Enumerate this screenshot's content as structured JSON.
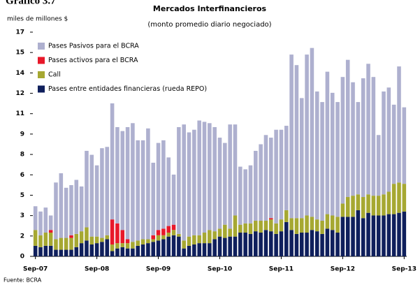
{
  "chart_data": {
    "type": "stacked_bar",
    "heading": "Gráfico 3.7",
    "title": "Mercados Interfinancieros",
    "subtitle": "(monto promedio diario negociado)",
    "y_label": "miles de millones $",
    "source": "Fuente: BCRA",
    "categories": [
      "Sep-07",
      null,
      null,
      null,
      null,
      null,
      null,
      null,
      null,
      null,
      null,
      null,
      "Sep-08",
      null,
      null,
      null,
      null,
      null,
      null,
      null,
      null,
      null,
      null,
      null,
      "Sep-09",
      null,
      null,
      null,
      null,
      null,
      null,
      null,
      null,
      null,
      null,
      null,
      "Sep-10",
      null,
      null,
      null,
      null,
      null,
      null,
      null,
      null,
      null,
      null,
      null,
      "Sep-11",
      null,
      null,
      null,
      null,
      null,
      null,
      null,
      null,
      null,
      null,
      null,
      "Sep-12",
      null,
      null,
      null,
      null,
      null,
      null,
      null,
      null,
      null,
      null,
      null,
      "Sep-13"
    ],
    "series": [
      {
        "name": "Pases entre entidades financieras (rueda REPO)",
        "color": "#0f1f5c",
        "values": [
          0.8,
          0.7,
          0.8,
          0.8,
          0.5,
          0.5,
          0.5,
          0.5,
          0.7,
          1.0,
          1.2,
          0.9,
          1.0,
          1.1,
          1.3,
          0.4,
          0.6,
          0.7,
          0.6,
          0.6,
          0.8,
          0.9,
          1.0,
          1.1,
          1.2,
          1.3,
          1.5,
          1.6,
          1.5,
          0.6,
          0.8,
          0.9,
          1.0,
          1.0,
          1.0,
          1.3,
          1.5,
          1.4,
          1.5,
          1.5,
          1.8,
          1.8,
          1.7,
          1.9,
          1.8,
          2.0,
          1.9,
          1.7,
          1.9,
          2.6,
          2.0,
          1.7,
          1.8,
          1.8,
          2.0,
          1.9,
          1.7,
          2.1,
          2.0,
          1.8,
          3.0,
          3.0,
          3.0,
          3.5,
          2.9,
          3.3,
          3.1,
          3.1,
          3.1,
          3.2,
          3.2,
          3.3,
          3.4
        ]
      },
      {
        "name": "Call",
        "color": "#a6a832",
        "values": [
          1.2,
          0.9,
          1.0,
          1.0,
          0.8,
          0.9,
          0.9,
          0.9,
          1.0,
          0.9,
          1.0,
          0.6,
          0.5,
          0.3,
          0.3,
          0.5,
          0.4,
          0.3,
          0.4,
          0.5,
          0.4,
          0.4,
          0.3,
          0.2,
          0.4,
          0.3,
          0.3,
          0.4,
          0.2,
          0.6,
          0.7,
          0.7,
          0.6,
          0.8,
          1.0,
          0.6,
          0.6,
          1.0,
          0.6,
          1.6,
          0.6,
          0.7,
          0.8,
          0.8,
          0.9,
          0.7,
          0.9,
          0.8,
          0.9,
          0.9,
          0.9,
          1.2,
          1.1,
          1.3,
          1.0,
          0.9,
          1.0,
          1.1,
          1.1,
          1.2,
          1.0,
          1.5,
          1.6,
          1.2,
          1.6,
          1.4,
          1.5,
          1.5,
          1.6,
          1.7,
          2.3,
          2.3,
          2.1
        ]
      },
      {
        "name": "Pases activos para el BCRA",
        "color": "#e8182a",
        "values": [
          0,
          0,
          0,
          0.2,
          0,
          0,
          0,
          0.2,
          0,
          0,
          0,
          0,
          0,
          0,
          0,
          1.9,
          1.5,
          1.0,
          0.3,
          0,
          0,
          0,
          0,
          0.3,
          0.4,
          0.5,
          0.5,
          0.4,
          0,
          0,
          0,
          0,
          0,
          0,
          0,
          0,
          0,
          0,
          0,
          0,
          0,
          0,
          0,
          0,
          0,
          0,
          0.1,
          0,
          0,
          0,
          0,
          0,
          0,
          0,
          0,
          0,
          0,
          0,
          0,
          0,
          0,
          0,
          0,
          0,
          0,
          0,
          0,
          0,
          0,
          0,
          0,
          0,
          0
        ]
      },
      {
        "name": "Pases Pasivos para el BCRA",
        "color": "#aeb0cf",
        "values": [
          1.8,
          1.8,
          1.9,
          1.1,
          4.3,
          4.9,
          3.8,
          3.8,
          4.1,
          3.4,
          5.8,
          6.2,
          5.4,
          6.8,
          6.7,
          8.8,
          7.3,
          7.5,
          8.5,
          9.0,
          7.6,
          7.5,
          8.4,
          5.5,
          6.6,
          6.7,
          5.2,
          3.8,
          8.1,
          8.8,
          7.9,
          8.0,
          8.7,
          8.4,
          8.1,
          7.9,
          6.9,
          6.2,
          7.9,
          6.9,
          4.4,
          4.1,
          4.4,
          5.3,
          5.8,
          6.5,
          6.1,
          7.1,
          6.8,
          6.4,
          12.4,
          11.6,
          9.1,
          12.2,
          12.8,
          9.7,
          9.0,
          10.8,
          9.3,
          8.7,
          9.6,
          10.4,
          8.6,
          7.0,
          9.0,
          9.9,
          9.0,
          4.6,
          7.8,
          7.9,
          6.0,
          8.8,
          5.8
        ]
      }
    ],
    "ylim": [
      0,
      17
    ],
    "yticks": [
      0,
      {
        "value": 1.545,
        "label": "2"
      },
      {
        "value": 3.091,
        "label": "3"
      },
      {
        "value": 4.636,
        "label": "5"
      },
      {
        "value": 6.182,
        "label": "6"
      },
      {
        "value": 7.727,
        "label": "8"
      },
      {
        "value": 9.273,
        "label": "9"
      },
      {
        "value": 10.818,
        "label": "11"
      },
      {
        "value": 12.364,
        "label": "12"
      },
      {
        "value": 13.909,
        "label": "14"
      },
      {
        "value": 15.455,
        "label": "15"
      },
      17
    ],
    "legend": "upper left",
    "grid": false
  }
}
